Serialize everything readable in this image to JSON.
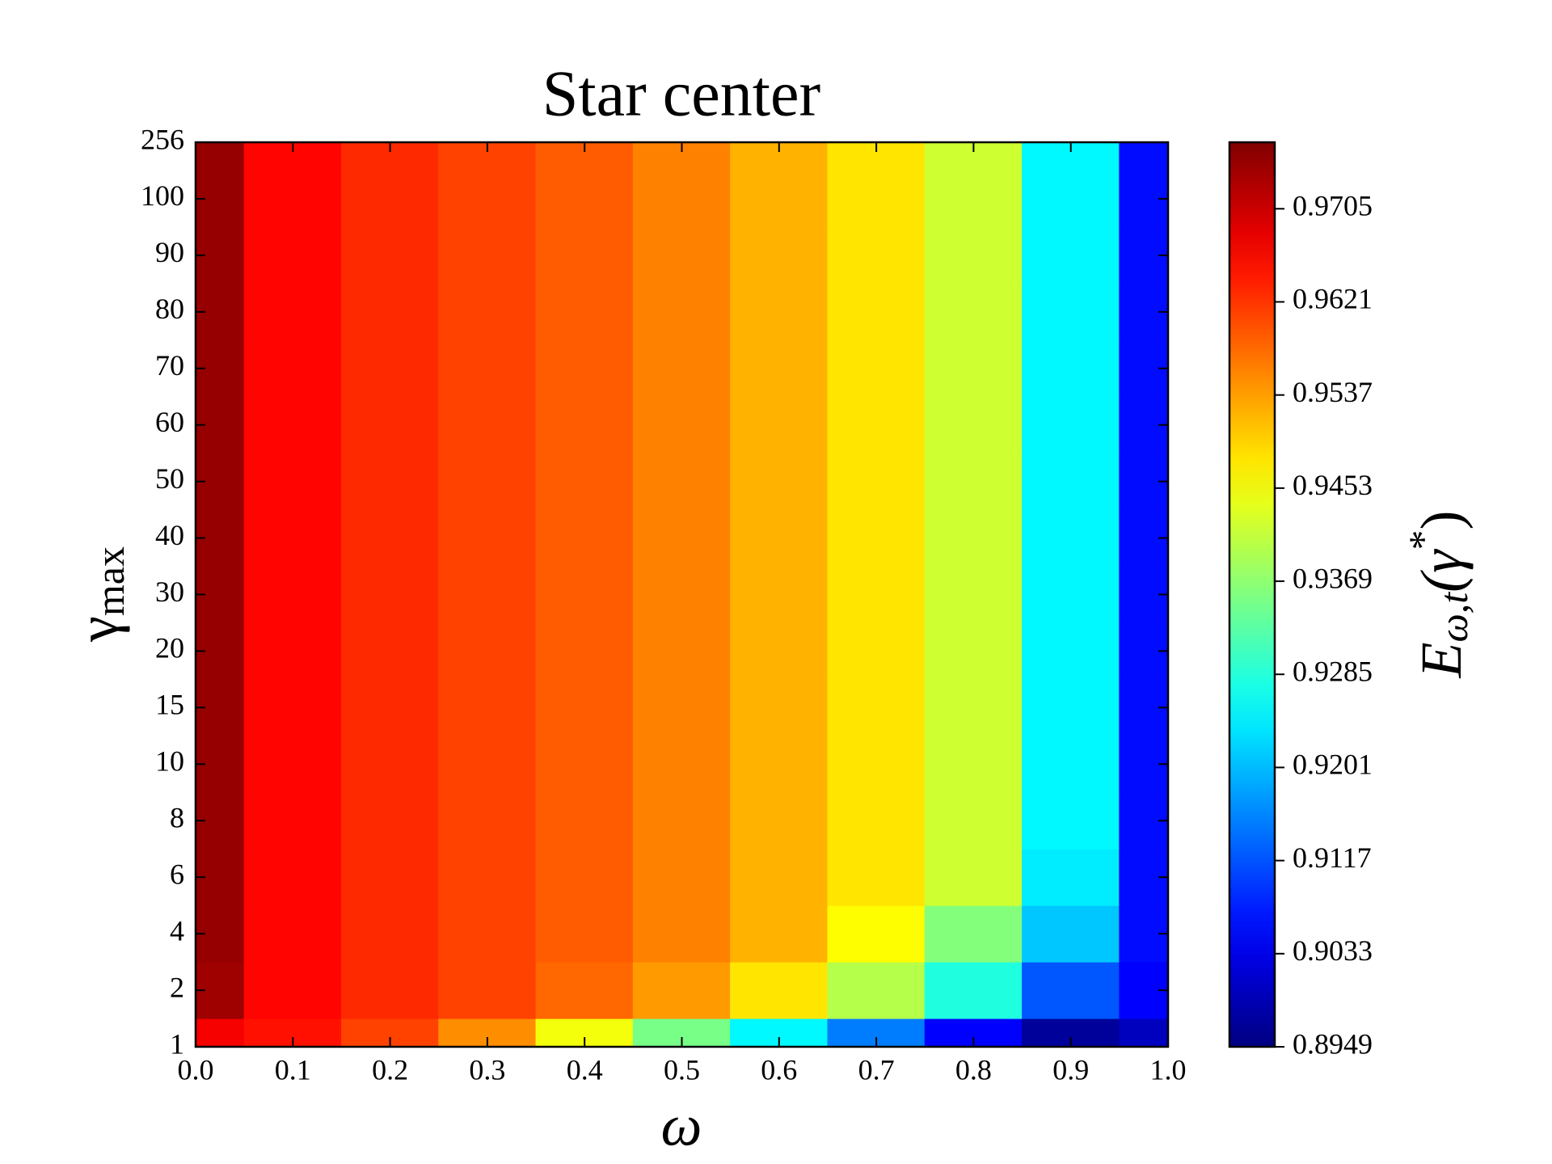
{
  "chart_data": {
    "type": "heatmap",
    "title": "Star center",
    "xlabel": "ω",
    "ylabel": {
      "symbol": "γ",
      "subscript": "max"
    },
    "colorbar_label": {
      "base": "E",
      "subscript": "ω,t",
      "open": "(γ",
      "superscript": "*",
      "close": ")"
    },
    "x": [
      0,
      0.1,
      0.2,
      0.3,
      0.4,
      0.5,
      0.6,
      0.7,
      0.8,
      0.9,
      1
    ],
    "xlim": [
      0,
      1
    ],
    "xticks": [
      {
        "value": 0,
        "label": "0.0"
      },
      0.1,
      0.2,
      0.3,
      0.4,
      0.5,
      0.6,
      0.7,
      0.8,
      0.9,
      {
        "value": 1,
        "label": "1.0"
      }
    ],
    "y_categories": [
      "1",
      "2",
      "4",
      "6",
      "8",
      "10",
      "15",
      "20",
      "30",
      "40",
      "50",
      "60",
      "70",
      "80",
      "90",
      "100",
      "256"
    ],
    "values": [
      [
        0.967,
        0.965,
        0.961,
        0.955,
        0.945,
        0.935,
        0.925,
        0.915,
        0.905,
        0.897,
        0.9
      ],
      [
        0.974,
        0.966,
        0.963,
        0.961,
        0.958,
        0.954,
        0.948,
        0.94,
        0.928,
        0.912,
        0.905
      ],
      [
        0.9747,
        0.966,
        0.963,
        0.961,
        0.959,
        0.956,
        0.952,
        0.946,
        0.936,
        0.921,
        0.906
      ],
      [
        0.9747,
        0.966,
        0.963,
        0.961,
        0.959,
        0.956,
        0.952,
        0.948,
        0.942,
        0.924,
        0.906
      ],
      [
        0.9747,
        0.966,
        0.963,
        0.961,
        0.959,
        0.956,
        0.952,
        0.948,
        0.942,
        0.925,
        0.906
      ],
      [
        0.9747,
        0.966,
        0.963,
        0.961,
        0.959,
        0.956,
        0.952,
        0.948,
        0.942,
        0.925,
        0.906
      ],
      [
        0.9747,
        0.966,
        0.963,
        0.961,
        0.959,
        0.956,
        0.952,
        0.948,
        0.942,
        0.925,
        0.906
      ],
      [
        0.9747,
        0.966,
        0.963,
        0.961,
        0.959,
        0.956,
        0.952,
        0.948,
        0.942,
        0.925,
        0.906
      ],
      [
        0.9747,
        0.966,
        0.963,
        0.961,
        0.959,
        0.956,
        0.952,
        0.948,
        0.942,
        0.925,
        0.906
      ],
      [
        0.9747,
        0.966,
        0.963,
        0.961,
        0.959,
        0.956,
        0.952,
        0.948,
        0.942,
        0.925,
        0.906
      ],
      [
        0.9747,
        0.966,
        0.963,
        0.961,
        0.959,
        0.956,
        0.952,
        0.948,
        0.942,
        0.925,
        0.906
      ],
      [
        0.9747,
        0.966,
        0.963,
        0.961,
        0.959,
        0.956,
        0.952,
        0.948,
        0.942,
        0.925,
        0.906
      ],
      [
        0.9747,
        0.966,
        0.963,
        0.961,
        0.959,
        0.956,
        0.952,
        0.948,
        0.942,
        0.925,
        0.906
      ],
      [
        0.9747,
        0.966,
        0.963,
        0.961,
        0.959,
        0.956,
        0.952,
        0.948,
        0.942,
        0.925,
        0.906
      ],
      [
        0.9747,
        0.966,
        0.963,
        0.961,
        0.959,
        0.956,
        0.952,
        0.948,
        0.942,
        0.925,
        0.906
      ],
      [
        0.9747,
        0.966,
        0.963,
        0.961,
        0.959,
        0.956,
        0.952,
        0.948,
        0.942,
        0.925,
        0.906
      ],
      [
        0.9747,
        0.966,
        0.963,
        0.961,
        0.959,
        0.956,
        0.952,
        0.948,
        0.942,
        0.925,
        0.906
      ]
    ],
    "colormap": "jet",
    "clim": [
      0.8949,
      0.9765
    ],
    "cticks": [
      0.8949,
      0.9033,
      0.9117,
      0.9201,
      0.9285,
      0.9369,
      0.9453,
      0.9537,
      0.9621,
      0.9705
    ]
  }
}
